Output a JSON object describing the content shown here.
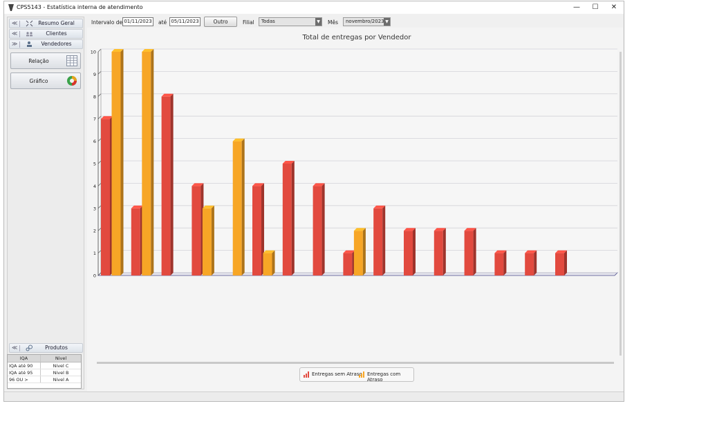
{
  "window": {
    "title": "CPS5143 - Estatística interna de atendimento",
    "minimize": "—",
    "maximize": "☐",
    "close": "✕"
  },
  "sidebar": {
    "sections": [
      {
        "label": "Resumo Geral",
        "chevron": "≪"
      },
      {
        "label": "Clientes",
        "chevron": "≪"
      },
      {
        "label": "Vendedores",
        "chevron": "≫"
      }
    ],
    "buttons": [
      {
        "label": "Relação"
      },
      {
        "label": "Gráfico"
      }
    ],
    "bottom_section": {
      "label": "Produtos",
      "chevron": "≪"
    },
    "iqa_table": {
      "headers": [
        "IQA",
        "Nivel"
      ],
      "rows": [
        [
          "IQA até 90",
          "Nivel C"
        ],
        [
          "IQA até 95",
          "Nivel B"
        ],
        [
          "96 OU >",
          "Nivel A"
        ]
      ]
    }
  },
  "toolbar": {
    "interval_label": "Intervalo de",
    "date_from": "01/11/2023",
    "until_label": "até",
    "date_to": "05/11/2023",
    "other_button": "Outro",
    "branch_label": "Filial",
    "branch_value": "Todas",
    "month_label": "Mês",
    "month_value": "novembro/2023"
  },
  "chart_data": {
    "type": "bar",
    "title": "Total de entregas por Vendedor",
    "ylim": [
      0,
      10
    ],
    "yticks": [
      "0",
      "1",
      "2",
      "3",
      "4",
      "5",
      "6",
      "7",
      "8",
      "9",
      "10"
    ],
    "categories": [
      "",
      "",
      "",
      "",
      "",
      "",
      "",
      "",
      "",
      "",
      "",
      "",
      "",
      "",
      "",
      ""
    ],
    "series": [
      {
        "name": "Entregas sem Atraso",
        "color": "#e24a3f",
        "values": [
          7,
          3,
          8,
          4,
          null,
          4,
          5,
          4,
          1,
          3,
          2,
          2,
          2,
          1,
          1,
          1
        ]
      },
      {
        "name": "Entregas com Atraso",
        "color": "#f7a626",
        "values": [
          10,
          10,
          null,
          3,
          6,
          1,
          null,
          null,
          2,
          null,
          null,
          null,
          null,
          null,
          null,
          null
        ]
      }
    ],
    "legend_position": "bottom",
    "grid": true
  }
}
